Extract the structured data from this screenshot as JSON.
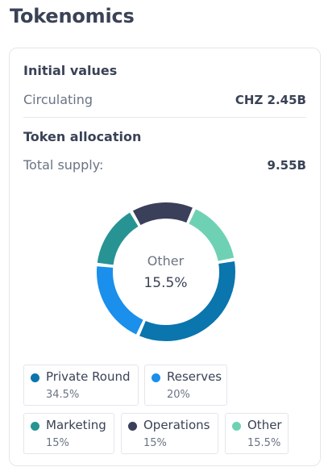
{
  "header": {
    "title": "Tokenomics"
  },
  "initial_values": {
    "title": "Initial values",
    "circulating_label": "Circulating",
    "circulating_value": "CHZ 2.45B"
  },
  "token_allocation": {
    "title": "Token allocation",
    "total_supply_label": "Total supply:",
    "total_supply_value": "9.55B"
  },
  "donut_center": {
    "label": "Other",
    "value": "15.5%"
  },
  "legend": [
    {
      "name": "Private Round",
      "pct": "34.5%",
      "color": "#0b75ad"
    },
    {
      "name": "Reserves",
      "pct": "20%",
      "color": "#1a8fec"
    },
    {
      "name": "Marketing",
      "pct": "15%",
      "color": "#279493"
    },
    {
      "name": "Operations",
      "pct": "15%",
      "color": "#3a3f5a"
    },
    {
      "name": "Other",
      "pct": "15.5%",
      "color": "#6fd1b4"
    }
  ],
  "chart_data": {
    "type": "pie",
    "categories": [
      "Private Round",
      "Reserves",
      "Marketing",
      "Operations",
      "Other"
    ],
    "values": [
      34.5,
      20,
      15,
      15,
      15.5
    ],
    "colors": [
      "#0b75ad",
      "#1a8fec",
      "#279493",
      "#3a3f5a",
      "#6fd1b4"
    ],
    "title": "Token allocation",
    "legend": "bottom"
  }
}
